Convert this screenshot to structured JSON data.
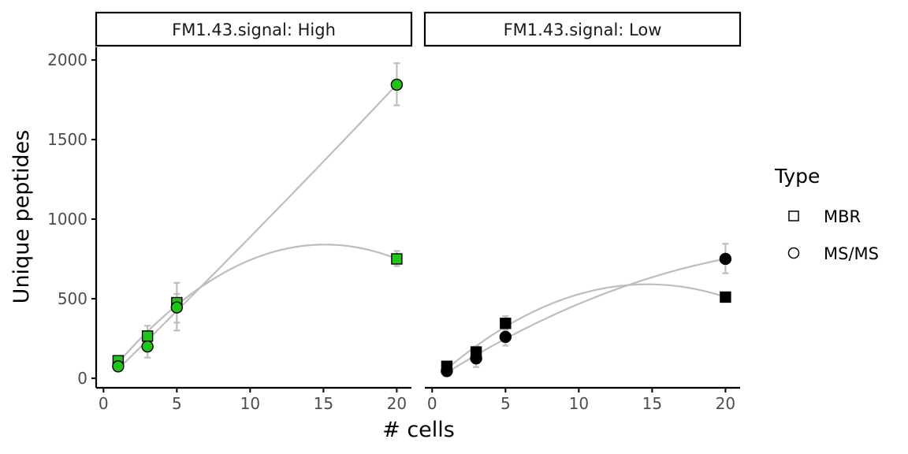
{
  "chart_data": {
    "type": "scatter",
    "xlabel": "# cells",
    "ylabel": "Unique peptides",
    "xlim": [
      -0.5,
      21
    ],
    "ylim": [
      -60,
      2080
    ],
    "x_ticks": [
      0,
      5,
      10,
      15,
      20
    ],
    "x_tick_labels": [
      "0",
      "5",
      "10",
      "15",
      "20"
    ],
    "y_ticks": [
      0,
      500,
      1000,
      1500,
      2000
    ],
    "y_tick_labels": [
      "0",
      "500",
      "1000",
      "1500",
      "2000"
    ],
    "grid": false,
    "legend": {
      "title": "Type",
      "placement": "right",
      "entries": [
        {
          "label": "MBR",
          "shape": "square"
        },
        {
          "label": "MS/MS",
          "shape": "circle"
        }
      ]
    },
    "facets": [
      {
        "strip_label": "FM1.43.signal: High",
        "fill_color": "#22c41c",
        "series": [
          {
            "type": "MBR",
            "shape": "square",
            "x": [
              1,
              3,
              5,
              20
            ],
            "y": [
              110,
              265,
              475,
              750
            ],
            "err_low": [
              80,
              200,
              300,
              705
            ],
            "err_high": [
              140,
              330,
              600,
              800
            ]
          },
          {
            "type": "MS/MS",
            "shape": "circle",
            "x": [
              1,
              3,
              5,
              20
            ],
            "y": [
              75,
              200,
              445,
              1845
            ],
            "err_low": [
              50,
              130,
              350,
              1715
            ],
            "err_high": [
              100,
              270,
              530,
              1980
            ]
          }
        ]
      },
      {
        "strip_label": "FM1.43.signal: Low",
        "fill_color": "#000000",
        "series": [
          {
            "type": "MBR",
            "shape": "square",
            "x": [
              1,
              3,
              5,
              20
            ],
            "y": [
              75,
              165,
              345,
              510
            ],
            "err_low": [
              55,
              130,
              300,
              495
            ],
            "err_high": [
              95,
              200,
              390,
              525
            ]
          },
          {
            "type": "MS/MS",
            "shape": "circle",
            "x": [
              1,
              3,
              5,
              20
            ],
            "y": [
              45,
              125,
              260,
              750
            ],
            "err_low": [
              30,
              70,
              205,
              660
            ],
            "err_high": [
              60,
              180,
              310,
              845
            ]
          }
        ]
      }
    ],
    "colors": {
      "trend_line": "#bebebe",
      "error_bar": "#bebebe",
      "axis": "#000000",
      "tick_label": "#4d4d4d"
    }
  }
}
